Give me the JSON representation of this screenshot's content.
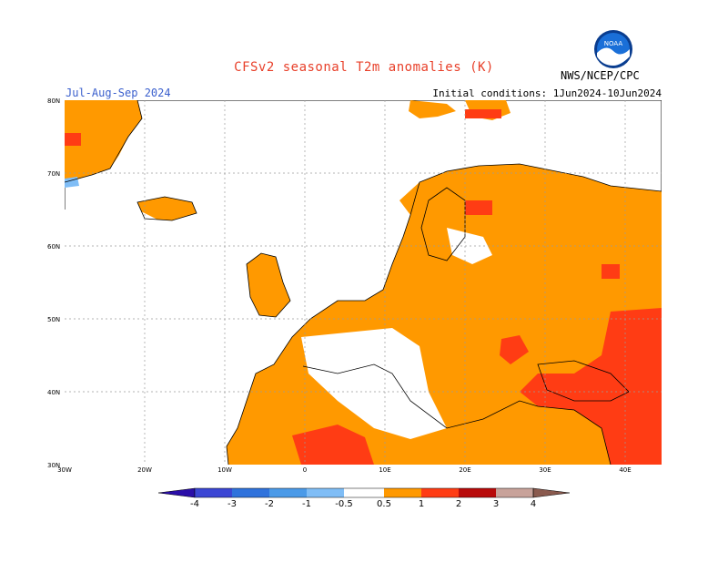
{
  "header": {
    "title": "CFSv2 seasonal T2m anomalies (K)",
    "period": "Jul-Aug-Sep 2024",
    "initial_conditions": "Initial conditions: 1Jun2024-10Jun2024",
    "agency": "NWS/NCEP/CPC",
    "logo_text": "NOAA"
  },
  "axes": {
    "lat_labels": [
      "80N",
      "70N",
      "60N",
      "50N",
      "40N",
      "30N"
    ],
    "lon_labels": [
      "30W",
      "20W",
      "10W",
      "0",
      "10E",
      "20E",
      "30E",
      "40E"
    ]
  },
  "legend": {
    "colors": [
      "#2a0ea8",
      "#3b46d4",
      "#2f72dc",
      "#4a9ae8",
      "#7fbdf6",
      "#ffffff",
      "#ff9900",
      "#ff3c14",
      "#b80a0a",
      "#c8a29a",
      "#8a5a4e"
    ],
    "labels": [
      "-4",
      "-3",
      "-2",
      "-1",
      "-0.5",
      "0.5",
      "1",
      "2",
      "3",
      "4"
    ]
  },
  "colors": {
    "orange": "#ff9900",
    "red": "#ff3c14",
    "darkred": "#b80a0a",
    "lightblue": "#7fbdf6",
    "blue": "#4a9ae8"
  }
}
